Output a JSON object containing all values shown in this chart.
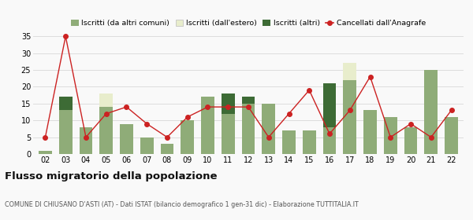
{
  "years": [
    "02",
    "03",
    "04",
    "05",
    "06",
    "07",
    "08",
    "09",
    "10",
    "11",
    "12",
    "13",
    "14",
    "15",
    "16",
    "17",
    "18",
    "19",
    "20",
    "21",
    "22"
  ],
  "iscritti_altri_comuni": [
    1,
    13,
    8,
    14,
    9,
    5,
    3,
    10,
    17,
    12,
    15,
    15,
    7,
    7,
    8,
    22,
    13,
    11,
    8,
    25,
    11
  ],
  "iscritti_estero": [
    0,
    0,
    0,
    4,
    0,
    0,
    0,
    0,
    0,
    0,
    0,
    0,
    0,
    0,
    0,
    5,
    0,
    0,
    0,
    0,
    0
  ],
  "iscritti_altri": [
    0,
    4,
    0,
    0,
    0,
    0,
    0,
    0,
    0,
    6,
    2,
    0,
    0,
    0,
    13,
    0,
    0,
    0,
    0,
    0,
    0
  ],
  "cancellati": [
    5,
    35,
    5,
    12,
    14,
    9,
    5,
    11,
    14,
    14,
    14,
    5,
    12,
    19,
    6,
    13,
    23,
    5,
    9,
    5,
    13
  ],
  "color_altri_comuni": "#8fac78",
  "color_estero": "#e8edcc",
  "color_altri": "#3d6b35",
  "color_cancellati": "#cc2222",
  "color_grid": "#dddddd",
  "color_bg": "#f9f9f9",
  "title": "Flusso migratorio della popolazione",
  "subtitle": "COMUNE DI CHIUSANO D'ASTI (AT) - Dati ISTAT (bilancio demografico 1 gen-31 dic) - Elaborazione TUTTITALIA.IT",
  "legend_labels": [
    "Iscritti (da altri comuni)",
    "Iscritti (dall'estero)",
    "Iscritti (altri)",
    "Cancellati dall'Anagrafe"
  ],
  "ylim": [
    0,
    36
  ],
  "yticks": [
    0,
    5,
    10,
    15,
    20,
    25,
    30,
    35
  ]
}
